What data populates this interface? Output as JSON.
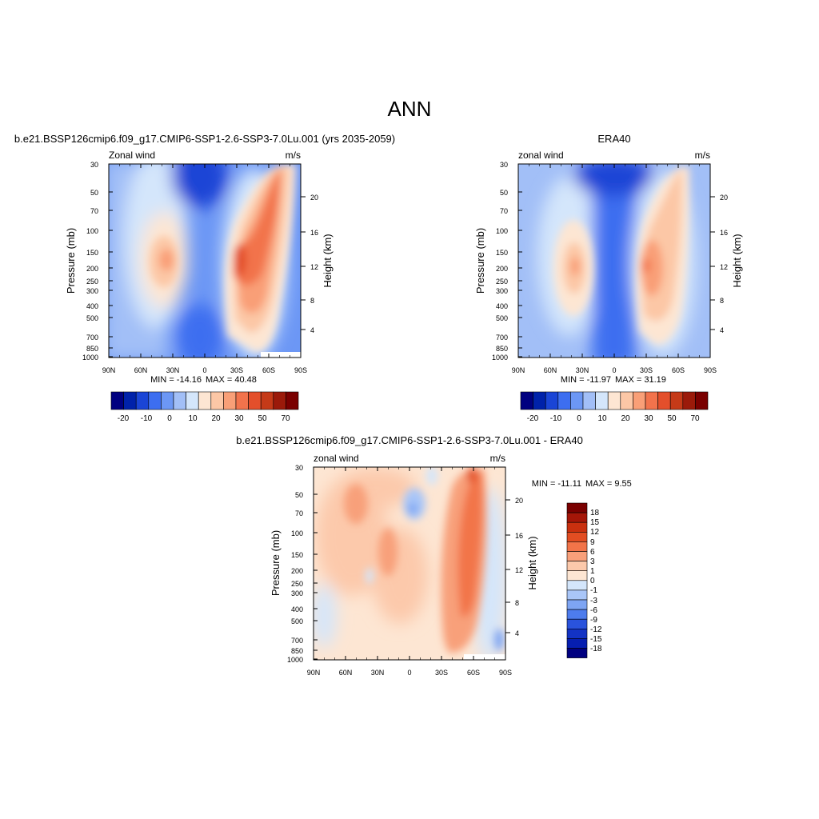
{
  "figure_title": "ANN",
  "chart_data": [
    {
      "type": "heatmap",
      "title": "b.e21.BSSP126cmip6.f09_g17.CMIP6-SSP1-2.6-SSP3-7.0Lu.001 (yrs 2035-2059)",
      "left_label": "Zonal wind",
      "right_label": "m/s",
      "xlabel": "",
      "ylabel": "Pressure (mb)",
      "y2label": "Height (km)",
      "x_ticks": [
        "90N",
        "60N",
        "30N",
        "0",
        "30S",
        "60S",
        "90S"
      ],
      "y_ticks": [
        "30",
        "50",
        "70",
        "100",
        "150",
        "200",
        "250",
        "300",
        "400",
        "500",
        "700",
        "850",
        "1000"
      ],
      "y2_ticks": [
        "20",
        "16",
        "12",
        "8",
        "4"
      ],
      "ylim": [
        1000,
        30
      ],
      "stats": {
        "min": "MIN = -14.16",
        "max": "MAX =  40.48"
      },
      "colorbar_labels": [
        "-20",
        "-10",
        "0",
        "10",
        "20",
        "30",
        "50",
        "70"
      ],
      "jets": [
        {
          "lat": 30,
          "pressure": 200,
          "value": 22
        },
        {
          "lat": -45,
          "pressure": 200,
          "value": 40.48
        }
      ]
    },
    {
      "type": "heatmap",
      "title": "ERA40",
      "left_label": "zonal wind",
      "right_label": "m/s",
      "xlabel": "",
      "ylabel": "Pressure (mb)",
      "y2label": "Height (km)",
      "x_ticks": [
        "90N",
        "60N",
        "30N",
        "0",
        "30S",
        "60S",
        "90S"
      ],
      "y_ticks": [
        "30",
        "50",
        "70",
        "100",
        "150",
        "200",
        "250",
        "300",
        "400",
        "500",
        "700",
        "850",
        "1000"
      ],
      "y2_ticks": [
        "20",
        "16",
        "12",
        "8",
        "4"
      ],
      "ylim": [
        1000,
        30
      ],
      "stats": {
        "min": "MIN = -11.97",
        "max": "MAX =  31.19"
      },
      "colorbar_labels": [
        "-20",
        "-10",
        "0",
        "10",
        "20",
        "30",
        "50",
        "70"
      ],
      "jets": [
        {
          "lat": 35,
          "pressure": 200,
          "value": 22
        },
        {
          "lat": -40,
          "pressure": 200,
          "value": 31.19
        }
      ]
    },
    {
      "type": "heatmap",
      "title": "b.e21.BSSP126cmip6.f09_g17.CMIP6-SSP1-2.6-SSP3-7.0Lu.001 - ERA40",
      "left_label": "zonal wind",
      "right_label": "m/s",
      "xlabel": "",
      "ylabel": "Pressure (mb)",
      "y2label": "Height (km)",
      "x_ticks": [
        "90N",
        "60N",
        "30N",
        "0",
        "30S",
        "60S",
        "90S"
      ],
      "y_ticks": [
        "30",
        "50",
        "70",
        "100",
        "150",
        "200",
        "250",
        "300",
        "400",
        "500",
        "700",
        "850",
        "1000"
      ],
      "y2_ticks": [
        "20",
        "16",
        "12",
        "8",
        "4"
      ],
      "ylim": [
        1000,
        30
      ],
      "stats": {
        "min": "MIN = -11.11",
        "max": "MAX =   9.55"
      },
      "colorbar_labels": [
        "18",
        "15",
        "12",
        "9",
        "6",
        "3",
        "1",
        "0",
        "-1",
        "-3",
        "-6",
        "-9",
        "-12",
        "-15",
        "-18"
      ],
      "jets": [
        {
          "lat": -55,
          "pressure": 40,
          "value": 9.55
        }
      ]
    }
  ],
  "colors": {
    "abs_scale": [
      "#000080",
      "#0022aa",
      "#1a45d6",
      "#3d6ef0",
      "#6c97f5",
      "#a2bff7",
      "#d4e6fb",
      "#fde6d3",
      "#fcc7a6",
      "#f99f77",
      "#f2734c",
      "#e34f2b",
      "#c53a18",
      "#9b1a0a",
      "#7a0000"
    ],
    "diff_scale": [
      "#7a0000",
      "#a51608",
      "#c9300f",
      "#e24d22",
      "#f27449",
      "#f8a07a",
      "#fcc9ab",
      "#fde6d3",
      "#d4e6fb",
      "#a9c6f8",
      "#7ea5f3",
      "#4d7ced",
      "#2a53dc",
      "#1333c4",
      "#061eb0",
      "#000080"
    ]
  }
}
